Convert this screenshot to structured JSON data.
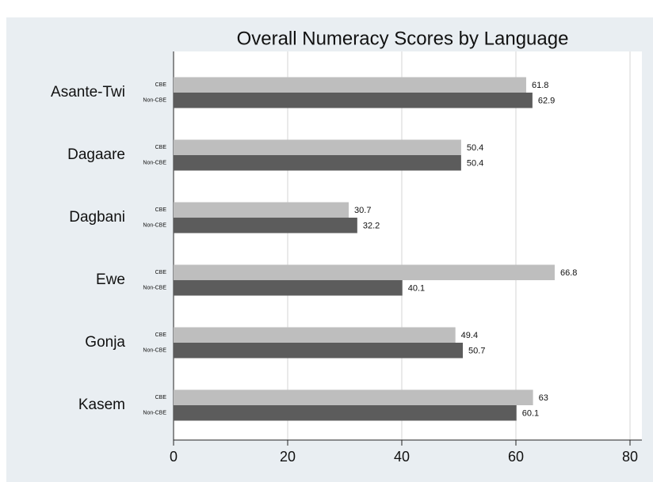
{
  "chart_data": {
    "type": "hbar_grouped",
    "title": "Overall Numeracy Scores by Language",
    "categories": [
      "Asante-Twi",
      "Dagaare",
      "Dagbani",
      "Ewe",
      "Gonja",
      "Kasem"
    ],
    "series": [
      {
        "name": "CBE",
        "color": "#bebebe",
        "values": [
          61.8,
          50.4,
          30.7,
          66.8,
          49.4,
          63
        ]
      },
      {
        "name": "Non-CBE",
        "color": "#5c5c5c",
        "values": [
          62.9,
          50.4,
          32.2,
          40.1,
          50.7,
          60.1
        ]
      }
    ],
    "xlim": [
      0,
      80
    ],
    "xticks": [
      0,
      20,
      40,
      60,
      80
    ],
    "grid": true
  }
}
